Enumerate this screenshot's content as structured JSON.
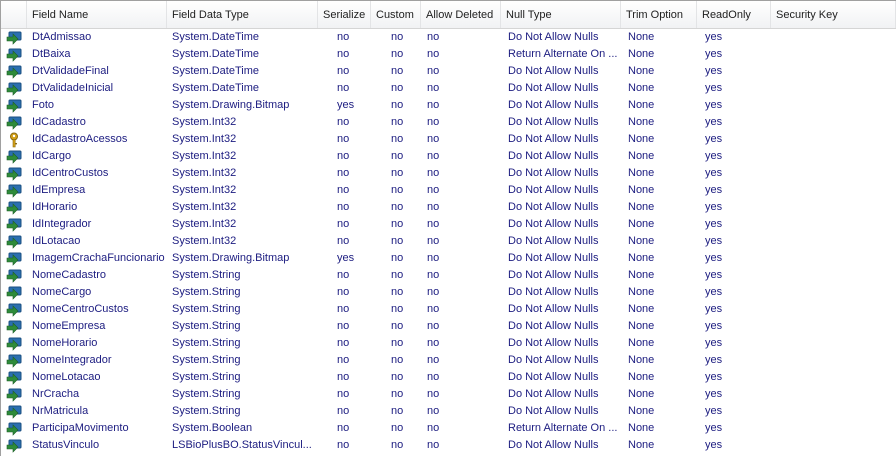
{
  "columns": [
    "",
    "Field Name",
    "Field Data Type",
    "Serialize",
    "Custom",
    "Allow Deleted",
    "Null Type",
    "Trim Option",
    "ReadOnly",
    "Security Key"
  ],
  "colors": {
    "text": "#1c1c80",
    "field_icon": "#2e8b3a",
    "key_icon": "#d4a017"
  },
  "rows": [
    {
      "icon": "field-icon",
      "name": "DtAdmissao",
      "type": "System.DateTime",
      "serialize": "no",
      "custom": "no",
      "allow_deleted": "no",
      "null_type": "Do Not Allow Nulls",
      "trim": "None",
      "readonly": "yes",
      "security_key": ""
    },
    {
      "icon": "field-icon",
      "name": "DtBaixa",
      "type": "System.DateTime",
      "serialize": "no",
      "custom": "no",
      "allow_deleted": "no",
      "null_type": "Return Alternate On ...",
      "trim": "None",
      "readonly": "yes",
      "security_key": ""
    },
    {
      "icon": "field-icon",
      "name": "DtValidadeFinal",
      "type": "System.DateTime",
      "serialize": "no",
      "custom": "no",
      "allow_deleted": "no",
      "null_type": "Do Not Allow Nulls",
      "trim": "None",
      "readonly": "yes",
      "security_key": ""
    },
    {
      "icon": "field-icon",
      "name": "DtValidadeInicial",
      "type": "System.DateTime",
      "serialize": "no",
      "custom": "no",
      "allow_deleted": "no",
      "null_type": "Do Not Allow Nulls",
      "trim": "None",
      "readonly": "yes",
      "security_key": ""
    },
    {
      "icon": "field-icon",
      "name": "Foto",
      "type": "System.Drawing.Bitmap",
      "serialize": "yes",
      "custom": "no",
      "allow_deleted": "no",
      "null_type": "Do Not Allow Nulls",
      "trim": "None",
      "readonly": "yes",
      "security_key": ""
    },
    {
      "icon": "field-icon",
      "name": "IdCadastro",
      "type": "System.Int32",
      "serialize": "no",
      "custom": "no",
      "allow_deleted": "no",
      "null_type": "Do Not Allow Nulls",
      "trim": "None",
      "readonly": "yes",
      "security_key": ""
    },
    {
      "icon": "key-icon",
      "name": "IdCadastroAcessos",
      "type": "System.Int32",
      "serialize": "no",
      "custom": "no",
      "allow_deleted": "no",
      "null_type": "Do Not Allow Nulls",
      "trim": "None",
      "readonly": "yes",
      "security_key": ""
    },
    {
      "icon": "field-icon",
      "name": "IdCargo",
      "type": "System.Int32",
      "serialize": "no",
      "custom": "no",
      "allow_deleted": "no",
      "null_type": "Do Not Allow Nulls",
      "trim": "None",
      "readonly": "yes",
      "security_key": ""
    },
    {
      "icon": "field-icon",
      "name": "IdCentroCustos",
      "type": "System.Int32",
      "serialize": "no",
      "custom": "no",
      "allow_deleted": "no",
      "null_type": "Do Not Allow Nulls",
      "trim": "None",
      "readonly": "yes",
      "security_key": ""
    },
    {
      "icon": "field-icon",
      "name": "IdEmpresa",
      "type": "System.Int32",
      "serialize": "no",
      "custom": "no",
      "allow_deleted": "no",
      "null_type": "Do Not Allow Nulls",
      "trim": "None",
      "readonly": "yes",
      "security_key": ""
    },
    {
      "icon": "field-icon",
      "name": "IdHorario",
      "type": "System.Int32",
      "serialize": "no",
      "custom": "no",
      "allow_deleted": "no",
      "null_type": "Do Not Allow Nulls",
      "trim": "None",
      "readonly": "yes",
      "security_key": ""
    },
    {
      "icon": "field-icon",
      "name": "IdIntegrador",
      "type": "System.Int32",
      "serialize": "no",
      "custom": "no",
      "allow_deleted": "no",
      "null_type": "Do Not Allow Nulls",
      "trim": "None",
      "readonly": "yes",
      "security_key": ""
    },
    {
      "icon": "field-icon",
      "name": "IdLotacao",
      "type": "System.Int32",
      "serialize": "no",
      "custom": "no",
      "allow_deleted": "no",
      "null_type": "Do Not Allow Nulls",
      "trim": "None",
      "readonly": "yes",
      "security_key": ""
    },
    {
      "icon": "field-icon",
      "name": "ImagemCrachaFuncionario",
      "type": "System.Drawing.Bitmap",
      "serialize": "yes",
      "custom": "no",
      "allow_deleted": "no",
      "null_type": "Do Not Allow Nulls",
      "trim": "None",
      "readonly": "yes",
      "security_key": ""
    },
    {
      "icon": "field-icon",
      "name": "NomeCadastro",
      "type": "System.String",
      "serialize": "no",
      "custom": "no",
      "allow_deleted": "no",
      "null_type": "Do Not Allow Nulls",
      "trim": "None",
      "readonly": "yes",
      "security_key": ""
    },
    {
      "icon": "field-icon",
      "name": "NomeCargo",
      "type": "System.String",
      "serialize": "no",
      "custom": "no",
      "allow_deleted": "no",
      "null_type": "Do Not Allow Nulls",
      "trim": "None",
      "readonly": "yes",
      "security_key": ""
    },
    {
      "icon": "field-icon",
      "name": "NomeCentroCustos",
      "type": "System.String",
      "serialize": "no",
      "custom": "no",
      "allow_deleted": "no",
      "null_type": "Do Not Allow Nulls",
      "trim": "None",
      "readonly": "yes",
      "security_key": ""
    },
    {
      "icon": "field-icon",
      "name": "NomeEmpresa",
      "type": "System.String",
      "serialize": "no",
      "custom": "no",
      "allow_deleted": "no",
      "null_type": "Do Not Allow Nulls",
      "trim": "None",
      "readonly": "yes",
      "security_key": ""
    },
    {
      "icon": "field-icon",
      "name": "NomeHorario",
      "type": "System.String",
      "serialize": "no",
      "custom": "no",
      "allow_deleted": "no",
      "null_type": "Do Not Allow Nulls",
      "trim": "None",
      "readonly": "yes",
      "security_key": ""
    },
    {
      "icon": "field-icon",
      "name": "NomeIntegrador",
      "type": "System.String",
      "serialize": "no",
      "custom": "no",
      "allow_deleted": "no",
      "null_type": "Do Not Allow Nulls",
      "trim": "None",
      "readonly": "yes",
      "security_key": ""
    },
    {
      "icon": "field-icon",
      "name": "NomeLotacao",
      "type": "System.String",
      "serialize": "no",
      "custom": "no",
      "allow_deleted": "no",
      "null_type": "Do Not Allow Nulls",
      "trim": "None",
      "readonly": "yes",
      "security_key": ""
    },
    {
      "icon": "field-icon",
      "name": "NrCracha",
      "type": "System.String",
      "serialize": "no",
      "custom": "no",
      "allow_deleted": "no",
      "null_type": "Do Not Allow Nulls",
      "trim": "None",
      "readonly": "yes",
      "security_key": ""
    },
    {
      "icon": "field-icon",
      "name": "NrMatricula",
      "type": "System.String",
      "serialize": "no",
      "custom": "no",
      "allow_deleted": "no",
      "null_type": "Do Not Allow Nulls",
      "trim": "None",
      "readonly": "yes",
      "security_key": ""
    },
    {
      "icon": "field-icon",
      "name": "ParticipaMovimento",
      "type": "System.Boolean",
      "serialize": "no",
      "custom": "no",
      "allow_deleted": "no",
      "null_type": "Return Alternate On ...",
      "trim": "None",
      "readonly": "yes",
      "security_key": ""
    },
    {
      "icon": "field-icon",
      "name": "StatusVinculo",
      "type": "LSBioPlusBO.StatusVincul...",
      "serialize": "no",
      "custom": "no",
      "allow_deleted": "no",
      "null_type": "Do Not Allow Nulls",
      "trim": "None",
      "readonly": "yes",
      "security_key": ""
    }
  ]
}
